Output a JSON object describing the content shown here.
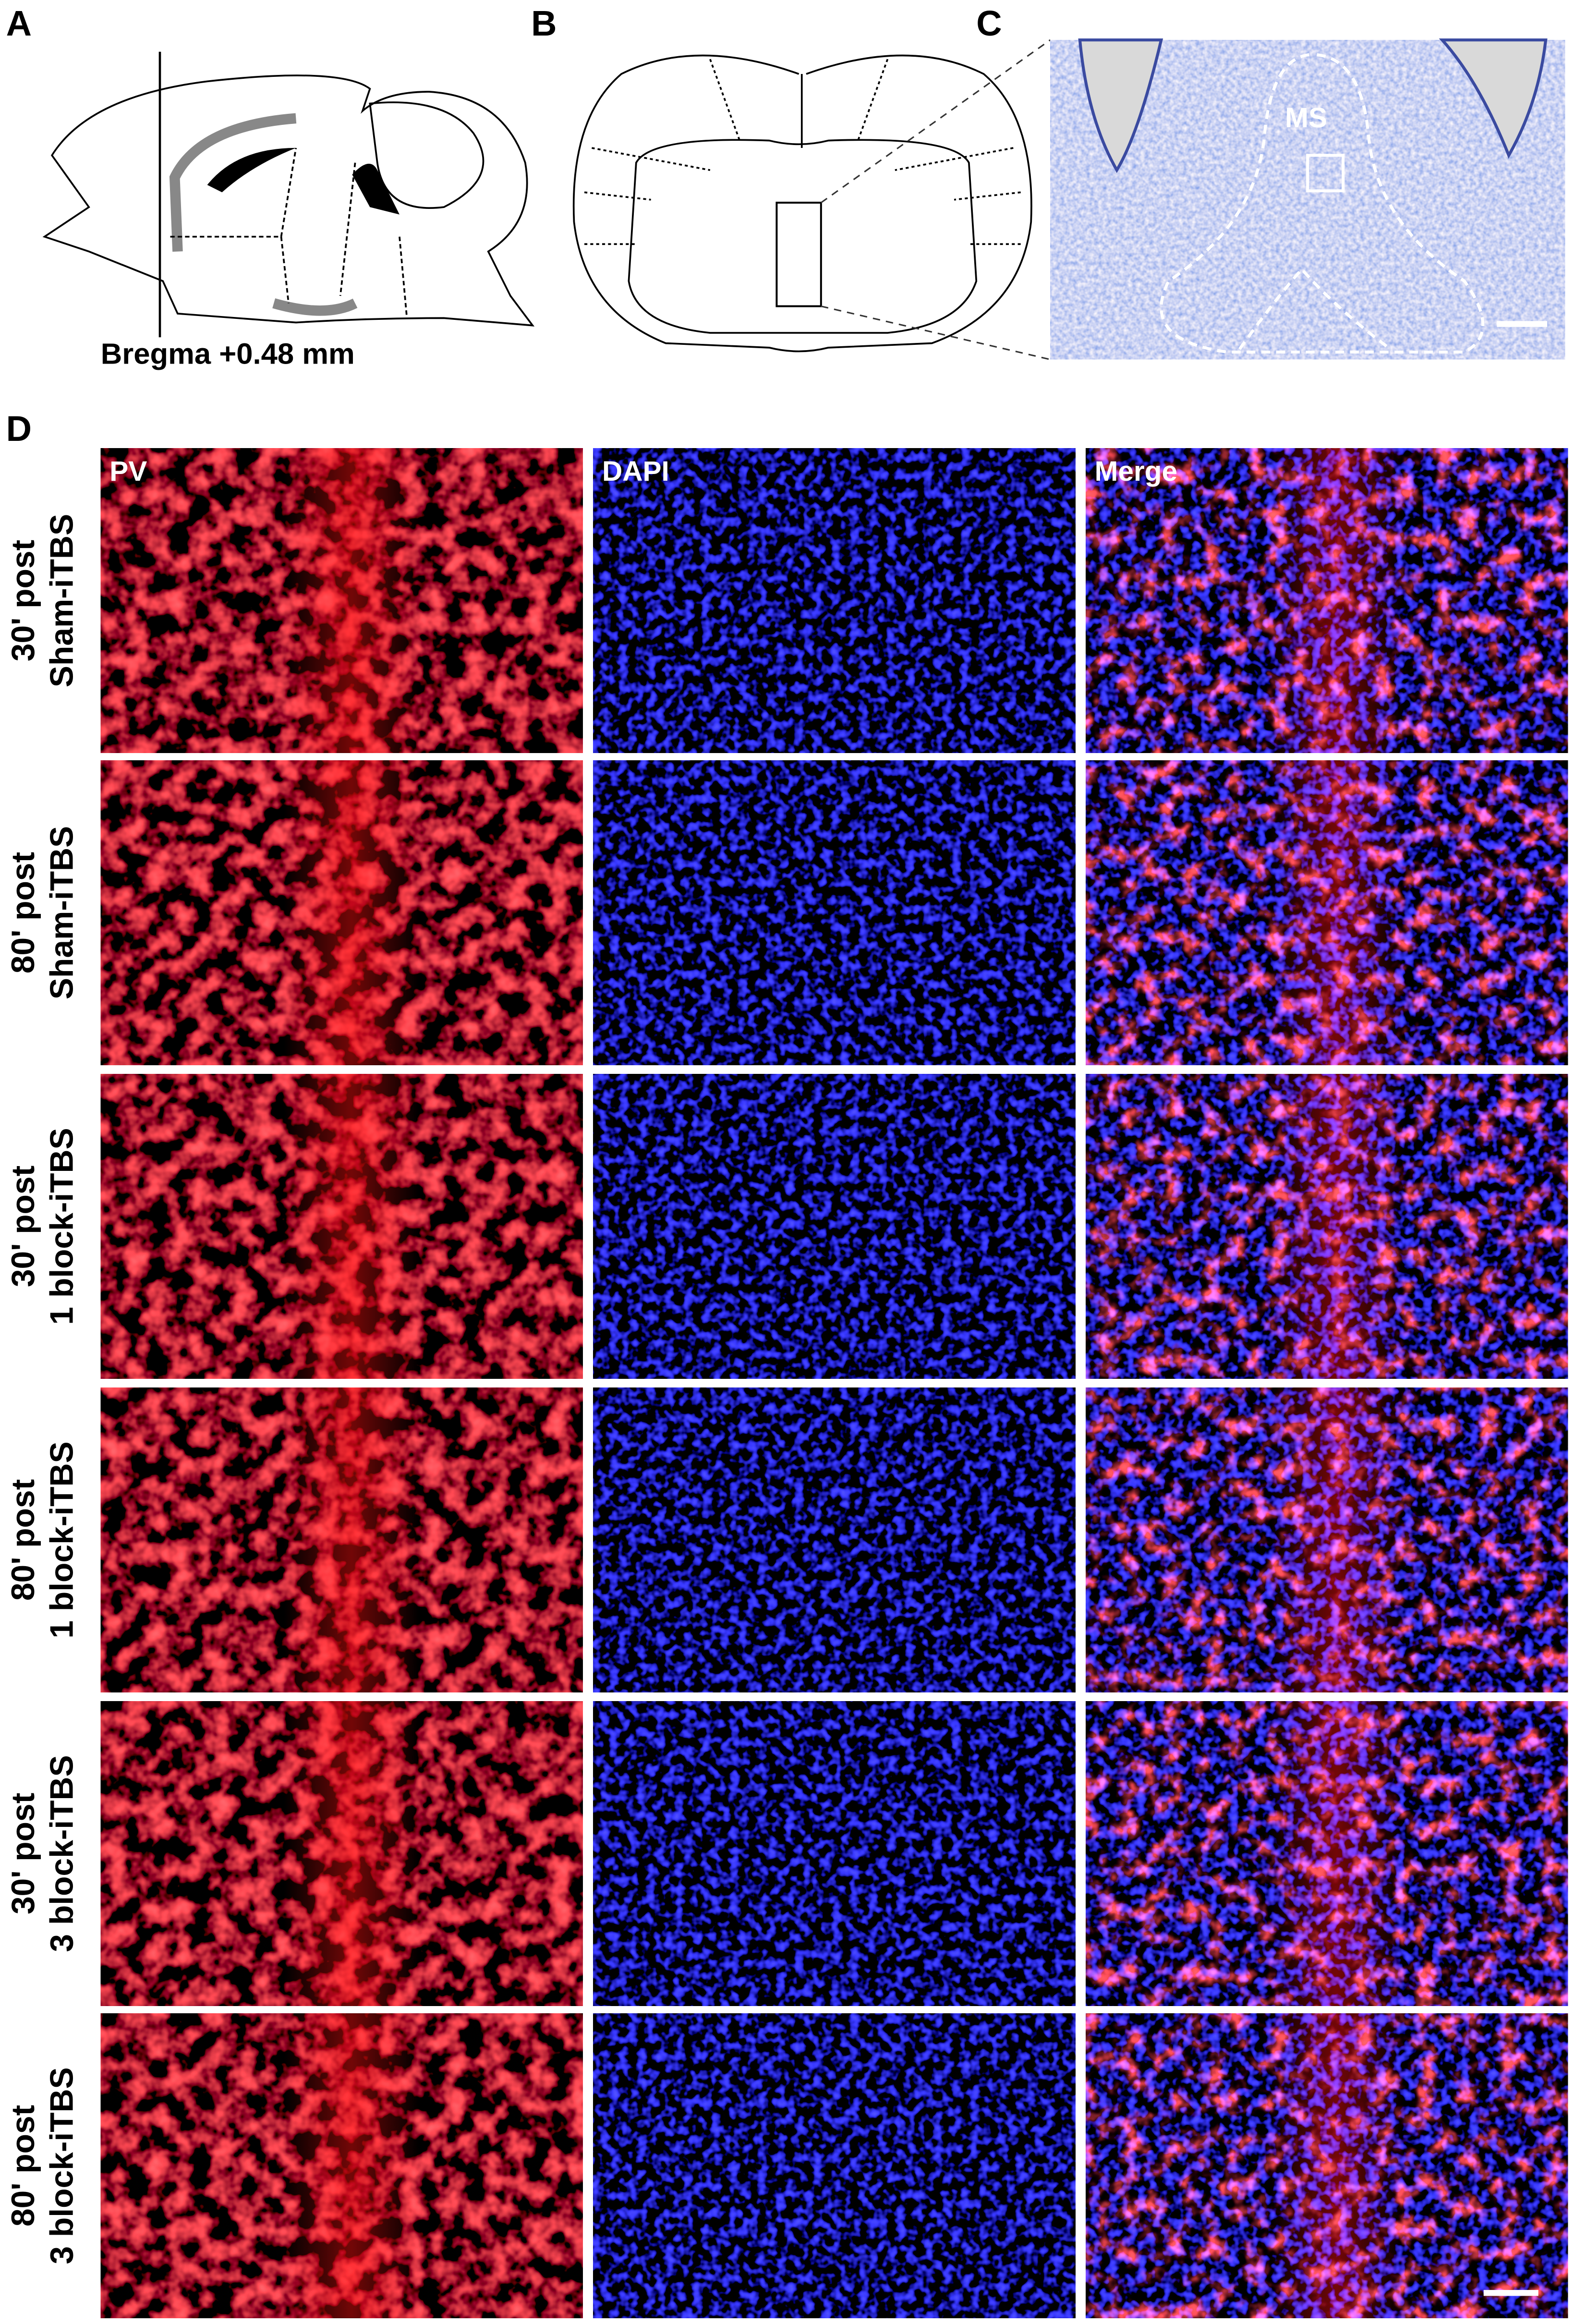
{
  "panels": {
    "a": {
      "label": "A",
      "caption": "Bregma +0.48 mm"
    },
    "b": {
      "label": "B"
    },
    "c": {
      "label": "C",
      "region": "MS"
    },
    "d": {
      "label": "D",
      "columns": [
        "PV",
        "DAPI",
        "Merge"
      ],
      "rows": [
        [
          "30' post",
          "Sham-iTBS"
        ],
        [
          "80' post",
          "Sham-iTBS"
        ],
        [
          "30' post",
          "1 block-iTBS"
        ],
        [
          "80' post",
          "1 block-iTBS"
        ],
        [
          "30' post",
          "3 block-iTBS"
        ],
        [
          "80' post",
          "3 block-iTBS"
        ]
      ]
    }
  }
}
